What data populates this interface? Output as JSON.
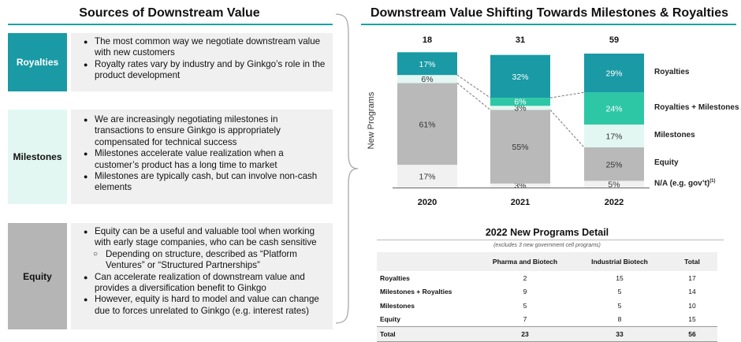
{
  "left": {
    "title": "Sources of Downstream Value",
    "sections": [
      {
        "label": "Royalties",
        "color": "#1a9aa5",
        "label_color": "#ffffff",
        "bullets": [
          "The most common way we negotiate downstream value with new customers",
          "Royalty rates vary by industry and by Ginkgo’s role in the product development"
        ]
      },
      {
        "label": "Milestones",
        "color": "#e3f7f2",
        "label_color": "#111111",
        "bullets": [
          "We are increasingly negotiating milestones in transactions to ensure Ginkgo is appropriately compensated for technical success",
          "Milestones accelerate value realization when a customer’s product has a long time to market",
          "Milestones are typically cash, but can involve non-cash elements"
        ]
      },
      {
        "label": "Equity",
        "color": "#b5b5b5",
        "label_color": "#111111",
        "bullets": [
          "Equity can be a useful and valuable tool when working with early stage companies, who can be cash sensitive",
          "Depending on structure, described as “Platform Ventures” or “Structured Partnerships”",
          "Can accelerate realization of downstream value and provides a diversification benefit to Ginkgo",
          "However, equity is hard to model and value can change due to forces unrelated to Ginkgo (e.g. interest rates)"
        ]
      }
    ]
  },
  "chart_data": {
    "type": "bar",
    "stacked": true,
    "normalized": true,
    "title": "Downstream Value Shifting Towards Milestones & Royalties",
    "ylabel": "New Programs",
    "categories": [
      "2020",
      "2021",
      "2022"
    ],
    "totals": [
      "18",
      "31",
      "59"
    ],
    "series": [
      {
        "name": "N/A (e.g. gov’t)",
        "values": [
          17,
          3,
          5
        ],
        "color": "#f1f1f1",
        "text_color": "#333333"
      },
      {
        "name": "Equity",
        "values": [
          61,
          55,
          25
        ],
        "color": "#b9b9b9",
        "text_color": "#333333"
      },
      {
        "name": "Milestones",
        "values": [
          6,
          3,
          17
        ],
        "color": "#e3f7f2",
        "text_color": "#333333"
      },
      {
        "name": "Royalties + Milestones",
        "values": [
          0,
          6,
          24
        ],
        "color": "#2ec7a6",
        "text_color": "#ffffff"
      },
      {
        "name": "Royalties",
        "values": [
          17,
          32,
          29
        ],
        "color": "#1a9aa5",
        "text_color": "#ffffff"
      }
    ],
    "legend_placement": "right",
    "legend_superscript": "(1)",
    "grid": false
  },
  "detail": {
    "title": "2022 New Programs Detail",
    "subtitle": "(excludes 3 new government cell programs)",
    "columns": [
      "",
      "Pharma and Biotech",
      "Industrial Biotech",
      "Total"
    ],
    "rows": [
      [
        "Royalties",
        "2",
        "15",
        "17"
      ],
      [
        "Milestones + Royalties",
        "9",
        "5",
        "14"
      ],
      [
        "Milestones",
        "5",
        "5",
        "10"
      ],
      [
        "Equity",
        "7",
        "8",
        "15"
      ]
    ],
    "total": [
      "Total",
      "23",
      "33",
      "56"
    ]
  }
}
